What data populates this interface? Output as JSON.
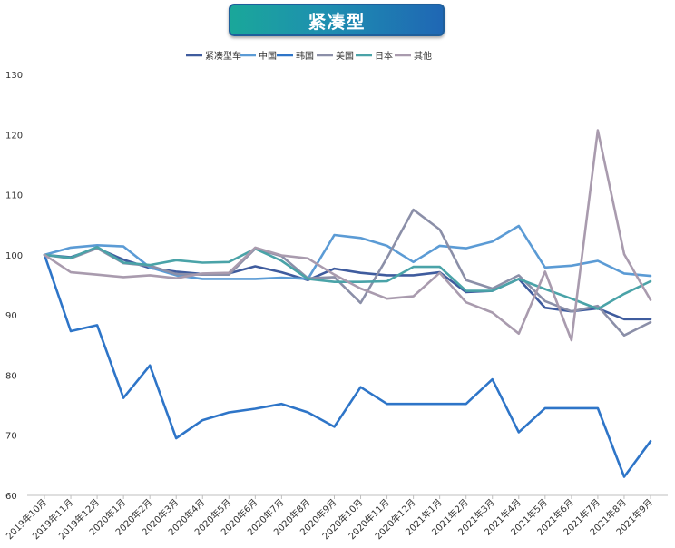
{
  "chart_data": {
    "type": "line",
    "title": "紧凑型",
    "ylim": [
      60,
      130
    ],
    "yticks": [
      60,
      70,
      80,
      90,
      100,
      110,
      120,
      130
    ],
    "grid": false,
    "legend_position": "top-center",
    "categories": [
      "2019年10月",
      "2019年11月",
      "2019年12月",
      "2020年1月",
      "2020年2月",
      "2020年3月",
      "2020年4月",
      "2020年5月",
      "2020年6月",
      "2020年7月",
      "2020年8月",
      "2020年9月",
      "2020年10月",
      "2020年11月",
      "2020年12月",
      "2021年1月",
      "2021年2月",
      "2021年3月",
      "2021年4月",
      "2021年5月",
      "2021年6月",
      "2021年7月",
      "2021年8月",
      "2021年9月"
    ],
    "series": [
      {
        "name": "紧凑型车",
        "color": "#3f5c9e",
        "values": [
          100,
          99.6,
          101.1,
          99.2,
          97.8,
          97.2,
          96.8,
          96.9,
          98.1,
          97.1,
          95.8,
          97.7,
          97,
          96.6,
          96.6,
          97.1,
          93.8,
          94,
          96,
          91.2,
          90.6,
          91.1,
          89.3,
          89.3
        ]
      },
      {
        "name": "中国",
        "color": "#5b9bd5",
        "values": [
          100,
          101.2,
          101.6,
          101.4,
          97.9,
          96.6,
          96,
          96,
          96,
          96.2,
          96,
          103.3,
          102.8,
          101.5,
          98.8,
          101.5,
          101.1,
          102.2,
          104.8,
          97.9,
          98.2,
          99,
          96.9,
          96.5
        ]
      },
      {
        "name": "韩国",
        "color": "#2e75c8",
        "values": [
          100,
          87.3,
          88.3,
          76.2,
          81.6,
          69.5,
          72.5,
          73.8,
          74.4,
          75.2,
          73.8,
          71.4,
          78,
          75.2,
          75.2,
          75.2,
          75.2,
          79.3,
          70.5,
          74.5,
          74.5,
          74.5,
          63.1,
          69
        ]
      },
      {
        "name": "美国",
        "color": "#8b8fa8",
        "values": [
          100,
          99.4,
          101.1,
          98.6,
          98.2,
          96.8,
          96.7,
          96.7,
          101,
          99.8,
          96.1,
          96.3,
          92,
          99.5,
          107.5,
          104.2,
          95.8,
          94.4,
          96.6,
          92.3,
          90.6,
          91.5,
          86.6,
          88.8
        ]
      },
      {
        "name": "日本",
        "color": "#4aa3a8",
        "values": [
          100,
          99.5,
          101.3,
          98.7,
          98.3,
          99.1,
          98.7,
          98.8,
          101,
          99,
          96,
          95.5,
          95.5,
          95.6,
          98,
          98,
          94,
          94,
          96,
          94.3,
          92.7,
          91,
          93.5,
          95.6
        ]
      },
      {
        "name": "其他",
        "color": "#a99bae",
        "values": [
          100,
          97.1,
          96.7,
          96.3,
          96.6,
          96.1,
          96.9,
          97,
          101.2,
          99.9,
          99.4,
          96.7,
          94.4,
          92.7,
          93.1,
          97,
          92.1,
          90.4,
          86.9,
          97.2,
          85.8,
          120.7,
          100.1,
          92.5
        ]
      }
    ]
  }
}
